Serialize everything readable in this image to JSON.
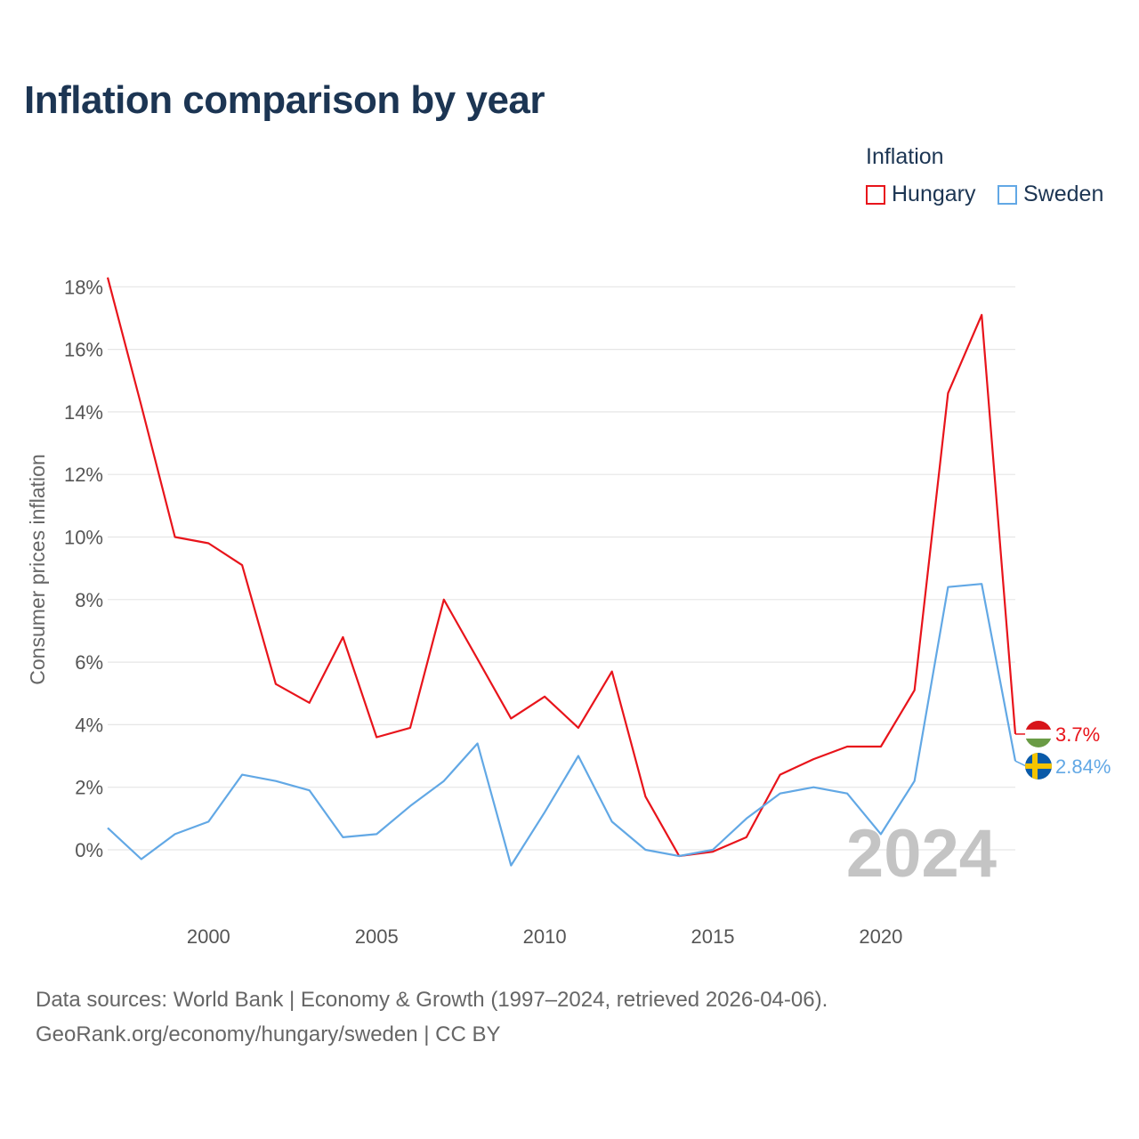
{
  "title": "Inflation comparison by year",
  "legend": {
    "title": "Inflation",
    "items": [
      {
        "label": "Hungary",
        "color": "#e8141b"
      },
      {
        "label": "Sweden",
        "color": "#62a8e5"
      }
    ]
  },
  "chart_data": {
    "type": "line",
    "title": "Inflation comparison by year",
    "xlabel": "",
    "ylabel": "Consumer prices inflation",
    "xlim": [
      1997,
      2024
    ],
    "ylim": [
      -2,
      18.5
    ],
    "x_ticks": [
      2000,
      2005,
      2010,
      2015,
      2020
    ],
    "y_ticks": [
      0,
      2,
      4,
      6,
      8,
      10,
      12,
      14,
      16,
      18
    ],
    "y_tick_labels": [
      "0%",
      "2%",
      "4%",
      "6%",
      "8%",
      "10%",
      "12%",
      "14%",
      "16%",
      "18%"
    ],
    "grid": true,
    "legend_position": "top-right",
    "year_annotation": "2024",
    "x": [
      1997,
      1998,
      1999,
      2000,
      2001,
      2002,
      2003,
      2004,
      2005,
      2006,
      2007,
      2008,
      2009,
      2010,
      2011,
      2012,
      2013,
      2014,
      2015,
      2016,
      2017,
      2018,
      2019,
      2020,
      2021,
      2022,
      2023,
      2024
    ],
    "series": [
      {
        "name": "Hungary",
        "color": "#e8141b",
        "end_label": "3.7%",
        "values": [
          18.3,
          14.2,
          10.0,
          9.8,
          9.1,
          5.3,
          4.7,
          6.8,
          3.6,
          3.9,
          8.0,
          6.1,
          4.2,
          4.9,
          3.9,
          5.7,
          1.7,
          -0.2,
          -0.06,
          0.4,
          2.4,
          2.9,
          3.3,
          3.3,
          5.1,
          14.6,
          17.1,
          3.7
        ]
      },
      {
        "name": "Sweden",
        "color": "#62a8e5",
        "end_label": "2.84%",
        "values": [
          0.7,
          -0.3,
          0.5,
          0.9,
          2.4,
          2.2,
          1.9,
          0.4,
          0.5,
          1.4,
          2.2,
          3.4,
          -0.5,
          1.2,
          3.0,
          0.9,
          0.0,
          -0.2,
          0.0,
          1.0,
          1.8,
          2.0,
          1.8,
          0.5,
          2.2,
          8.4,
          8.5,
          2.84
        ]
      }
    ]
  },
  "source": {
    "line1": "Data sources: World Bank | Economy & Growth (1997–2024, retrieved 2026-04-06).",
    "line2": "GeoRank.org/economy/hungary/sweden | CC BY"
  }
}
